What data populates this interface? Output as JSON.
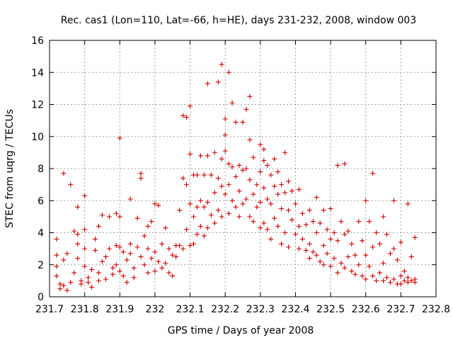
{
  "chart_data": {
    "type": "scatter",
    "title": "Rec. cas1 (Lon=110, Lat=-66, h=HE), days 231-232, 2008, window 003",
    "xlabel": "GPS time / Days of year 2008",
    "ylabel": "STEC from uqrg / TECUs",
    "xlim": [
      231.7,
      232.8
    ],
    "ylim": [
      0,
      16
    ],
    "x_ticks": [
      231.7,
      231.8,
      231.9,
      232.0,
      232.1,
      232.2,
      232.3,
      232.4,
      232.5,
      232.6,
      232.7,
      232.8
    ],
    "x_tick_labels": [
      "231.7",
      "231.8",
      "231.9",
      "232",
      "232.1",
      "232.2",
      "232.3",
      "232.4",
      "232.5",
      "232.6",
      "232.7",
      "232.8"
    ],
    "y_ticks": [
      0,
      2,
      4,
      6,
      8,
      10,
      12,
      14,
      16
    ],
    "y_tick_labels": [
      "0",
      "2",
      "4",
      "6",
      "8",
      "10",
      "12",
      "14",
      "16"
    ],
    "grid": true,
    "marker": "+",
    "color": "#cc0000",
    "series": [
      {
        "points": [
          [
            231.72,
            3.6
          ],
          [
            231.72,
            2.6
          ],
          [
            231.72,
            1.9
          ],
          [
            231.72,
            1.3
          ],
          [
            231.73,
            0.8
          ],
          [
            231.73,
            0.5
          ],
          [
            231.74,
            7.7
          ],
          [
            231.74,
            2.3
          ],
          [
            231.74,
            0.7
          ],
          [
            231.75,
            2.7
          ],
          [
            231.75,
            0.4
          ],
          [
            231.76,
            0.9
          ],
          [
            231.76,
            7.0
          ],
          [
            231.77,
            4.1
          ],
          [
            231.77,
            1.5
          ],
          [
            231.78,
            5.6
          ],
          [
            231.78,
            3.9
          ],
          [
            231.78,
            3.3
          ],
          [
            231.78,
            2.4
          ],
          [
            231.79,
            1.0
          ],
          [
            231.79,
            0.8
          ],
          [
            231.8,
            6.3
          ],
          [
            231.8,
            4.2
          ],
          [
            231.8,
            3.0
          ],
          [
            231.8,
            1.9
          ],
          [
            231.81,
            1.2
          ],
          [
            231.81,
            0.9
          ],
          [
            231.82,
            1.7
          ],
          [
            231.82,
            0.6
          ],
          [
            231.83,
            3.6
          ],
          [
            231.83,
            2.9
          ],
          [
            231.84,
            4.4
          ],
          [
            231.84,
            1.5
          ],
          [
            231.84,
            1.0
          ],
          [
            231.85,
            5.1
          ],
          [
            231.85,
            2.2
          ],
          [
            231.86,
            2.5
          ],
          [
            231.86,
            1.1
          ],
          [
            231.87,
            5.0
          ],
          [
            231.87,
            3.0
          ],
          [
            231.88,
            1.8
          ],
          [
            231.88,
            1.4
          ],
          [
            231.89,
            5.2
          ],
          [
            231.89,
            3.2
          ],
          [
            231.89,
            2.0
          ],
          [
            231.9,
            9.9
          ],
          [
            231.9,
            5.0
          ],
          [
            231.9,
            3.1
          ],
          [
            231.9,
            1.6
          ],
          [
            231.91,
            2.8
          ],
          [
            231.91,
            1.3
          ],
          [
            231.92,
            2.3
          ],
          [
            231.92,
            0.9
          ],
          [
            231.93,
            6.1
          ],
          [
            231.93,
            3.3
          ],
          [
            231.93,
            2.7
          ],
          [
            231.94,
            1.8
          ],
          [
            231.94,
            1.2
          ],
          [
            231.95,
            4.9
          ],
          [
            231.95,
            3.1
          ],
          [
            231.96,
            7.7
          ],
          [
            231.96,
            7.4
          ],
          [
            231.96,
            2.5
          ],
          [
            231.97,
            3.8
          ],
          [
            231.97,
            2.0
          ],
          [
            231.98,
            4.4
          ],
          [
            231.98,
            3.0
          ],
          [
            231.98,
            1.5
          ],
          [
            231.99,
            4.7
          ],
          [
            231.99,
            2.4
          ],
          [
            232.0,
            5.8
          ],
          [
            232.0,
            2.8
          ],
          [
            232.0,
            1.6
          ],
          [
            232.01,
            5.7
          ],
          [
            232.01,
            2.2
          ],
          [
            232.02,
            3.3
          ],
          [
            232.02,
            1.8
          ],
          [
            232.03,
            4.3
          ],
          [
            232.03,
            2.1
          ],
          [
            232.04,
            3.0
          ],
          [
            232.04,
            1.5
          ],
          [
            232.05,
            2.6
          ],
          [
            232.05,
            1.3
          ],
          [
            232.06,
            3.2
          ],
          [
            232.06,
            2.5
          ],
          [
            232.07,
            5.4
          ],
          [
            232.07,
            3.2
          ],
          [
            232.08,
            11.3
          ],
          [
            232.08,
            7.4
          ],
          [
            232.08,
            3.0
          ],
          [
            232.09,
            11.2
          ],
          [
            232.09,
            7.0
          ],
          [
            232.09,
            4.2
          ],
          [
            232.1,
            11.9
          ],
          [
            232.1,
            8.9
          ],
          [
            232.1,
            5.8
          ],
          [
            232.1,
            3.2
          ],
          [
            232.11,
            7.6
          ],
          [
            232.11,
            5.0
          ],
          [
            232.11,
            3.3
          ],
          [
            232.12,
            7.6
          ],
          [
            232.12,
            5.6
          ],
          [
            232.12,
            3.9
          ],
          [
            232.13,
            8.8
          ],
          [
            232.13,
            6.0
          ],
          [
            232.13,
            4.4
          ],
          [
            232.14,
            7.6
          ],
          [
            232.14,
            5.6
          ],
          [
            232.14,
            3.8
          ],
          [
            232.15,
            13.3
          ],
          [
            232.15,
            8.8
          ],
          [
            232.15,
            5.9
          ],
          [
            232.15,
            4.3
          ],
          [
            232.16,
            7.6
          ],
          [
            232.16,
            5.1
          ],
          [
            232.17,
            9.0
          ],
          [
            232.17,
            6.5
          ],
          [
            232.17,
            4.6
          ],
          [
            232.18,
            13.4
          ],
          [
            232.18,
            7.4
          ],
          [
            232.18,
            5.4
          ],
          [
            232.19,
            14.5
          ],
          [
            232.19,
            8.6
          ],
          [
            232.19,
            6.9
          ],
          [
            232.19,
            5.0
          ],
          [
            232.2,
            11.1
          ],
          [
            232.2,
            10.1
          ],
          [
            232.2,
            9.1
          ],
          [
            232.2,
            6.4
          ],
          [
            232.21,
            14.0
          ],
          [
            232.21,
            8.3
          ],
          [
            232.21,
            7.0
          ],
          [
            232.21,
            5.2
          ],
          [
            232.22,
            12.1
          ],
          [
            232.22,
            8.1
          ],
          [
            232.22,
            6.0
          ],
          [
            232.23,
            10.9
          ],
          [
            232.23,
            7.5
          ],
          [
            232.23,
            5.6
          ],
          [
            232.24,
            8.2
          ],
          [
            232.24,
            6.6
          ],
          [
            232.24,
            5.0
          ],
          [
            232.25,
            10.9
          ],
          [
            232.25,
            7.9
          ],
          [
            232.25,
            5.8
          ],
          [
            232.26,
            11.7
          ],
          [
            232.26,
            8.0
          ],
          [
            232.26,
            6.1
          ],
          [
            232.27,
            12.5
          ],
          [
            232.27,
            9.8
          ],
          [
            232.27,
            7.3
          ],
          [
            232.27,
            5.0
          ],
          [
            232.28,
            8.7
          ],
          [
            232.28,
            6.4
          ],
          [
            232.28,
            4.7
          ],
          [
            232.29,
            7.0
          ],
          [
            232.29,
            5.6
          ],
          [
            232.3,
            9.5
          ],
          [
            232.3,
            7.8
          ],
          [
            232.3,
            5.9
          ],
          [
            232.3,
            4.3
          ],
          [
            232.31,
            9.2
          ],
          [
            232.31,
            8.5
          ],
          [
            232.31,
            6.8
          ],
          [
            232.31,
            4.6
          ],
          [
            232.32,
            8.2
          ],
          [
            232.32,
            6.1
          ],
          [
            232.32,
            4.2
          ],
          [
            232.33,
            7.6
          ],
          [
            232.33,
            5.8
          ],
          [
            232.33,
            3.6
          ],
          [
            232.34,
            8.6
          ],
          [
            232.34,
            6.9
          ],
          [
            232.34,
            4.9
          ],
          [
            232.35,
            7.8
          ],
          [
            232.35,
            6.4
          ],
          [
            232.35,
            4.4
          ],
          [
            232.36,
            7.0
          ],
          [
            232.36,
            5.5
          ],
          [
            232.36,
            3.3
          ],
          [
            232.37,
            9.0
          ],
          [
            232.37,
            6.5
          ],
          [
            232.37,
            4.0
          ],
          [
            232.38,
            7.2
          ],
          [
            232.38,
            5.4
          ],
          [
            232.38,
            3.1
          ],
          [
            232.39,
            6.6
          ],
          [
            232.39,
            4.8
          ],
          [
            232.4,
            5.8
          ],
          [
            232.4,
            3.9
          ],
          [
            232.41,
            6.7
          ],
          [
            232.41,
            4.4
          ],
          [
            232.41,
            3.0
          ],
          [
            232.42,
            5.2
          ],
          [
            232.42,
            3.6
          ],
          [
            232.43,
            4.5
          ],
          [
            232.43,
            2.9
          ],
          [
            232.44,
            5.4
          ],
          [
            232.44,
            3.3
          ],
          [
            232.44,
            2.4
          ],
          [
            232.45,
            4.7
          ],
          [
            232.45,
            2.8
          ],
          [
            232.46,
            6.2
          ],
          [
            232.46,
            4.0
          ],
          [
            232.46,
            2.6
          ],
          [
            232.47,
            4.6
          ],
          [
            232.47,
            2.2
          ],
          [
            232.48,
            5.4
          ],
          [
            232.48,
            3.2
          ],
          [
            232.48,
            2.0
          ],
          [
            232.49,
            4.2
          ],
          [
            232.49,
            2.7
          ],
          [
            232.5,
            5.5
          ],
          [
            232.5,
            3.6
          ],
          [
            232.5,
            1.9
          ],
          [
            232.51,
            4.0
          ],
          [
            232.51,
            2.4
          ],
          [
            232.52,
            8.2
          ],
          [
            232.52,
            3.5
          ],
          [
            232.52,
            1.5
          ],
          [
            232.53,
            4.7
          ],
          [
            232.53,
            2.1
          ],
          [
            232.54,
            8.3
          ],
          [
            232.54,
            3.9
          ],
          [
            232.54,
            1.8
          ],
          [
            232.55,
            4.1
          ],
          [
            232.55,
            2.5
          ],
          [
            232.56,
            3.3
          ],
          [
            232.56,
            1.6
          ],
          [
            232.57,
            2.6
          ],
          [
            232.57,
            1.4
          ],
          [
            232.58,
            4.7
          ],
          [
            232.58,
            2.0
          ],
          [
            232.59,
            3.5
          ],
          [
            232.59,
            1.3
          ],
          [
            232.6,
            6.0
          ],
          [
            232.6,
            2.6
          ],
          [
            232.6,
            1.1
          ],
          [
            232.61,
            4.7
          ],
          [
            232.61,
            1.9
          ],
          [
            232.62,
            7.7
          ],
          [
            232.62,
            3.1
          ],
          [
            232.62,
            1.3
          ],
          [
            232.63,
            4.0
          ],
          [
            232.63,
            1.0
          ],
          [
            232.64,
            3.3
          ],
          [
            232.64,
            1.5
          ],
          [
            232.65,
            5.0
          ],
          [
            232.65,
            2.1
          ],
          [
            232.65,
            1.0
          ],
          [
            232.66,
            3.9
          ],
          [
            232.66,
            1.2
          ],
          [
            232.67,
            2.7
          ],
          [
            232.67,
            0.9
          ],
          [
            232.68,
            6.0
          ],
          [
            232.68,
            3.0
          ],
          [
            232.68,
            1.1
          ],
          [
            232.69,
            2.3
          ],
          [
            232.69,
            0.8
          ],
          [
            232.7,
            3.4
          ],
          [
            232.7,
            1.3
          ],
          [
            232.7,
            0.8
          ],
          [
            232.71,
            1.6
          ],
          [
            232.71,
            1.0
          ],
          [
            232.72,
            5.8
          ],
          [
            232.72,
            1.2
          ],
          [
            232.72,
            0.9
          ],
          [
            232.73,
            2.5
          ],
          [
            232.73,
            1.0
          ],
          [
            232.74,
            3.7
          ],
          [
            232.74,
            1.1
          ],
          [
            232.74,
            0.9
          ]
        ]
      }
    ]
  }
}
